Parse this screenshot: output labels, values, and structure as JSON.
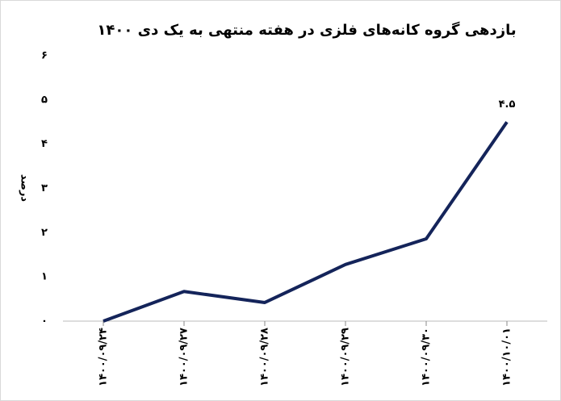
{
  "chart_data": {
    "type": "line",
    "title": "بازدهی گروه کانه‌های فلزی در هفته منتهی به یک دی ۱۴۰۰",
    "y_label": "درصد",
    "categories": [
      "۱۴۰۰/۰۹/۲۴",
      "۱۴۰۰/۰۹/۲۷",
      "۱۴۰۰/۰۹/۲۸",
      "۱۴۰۰/۰۹/۲۹",
      "۱۴۰۰/۰۹/۳۰",
      "۱۴۰۰/۱۰/۰۱"
    ],
    "values": [
      0,
      0.67,
      0.42,
      1.28,
      1.86,
      4.5
    ],
    "value_labels": [
      null,
      null,
      null,
      null,
      null,
      "۴.۵"
    ],
    "color": "#14245a",
    "ylim": [
      0,
      6
    ],
    "yticks": [
      {
        "value": 0,
        "label": "۰"
      },
      {
        "value": 1,
        "label": "۱"
      },
      {
        "value": 2,
        "label": "۲"
      },
      {
        "value": 3,
        "label": "۳"
      },
      {
        "value": 4,
        "label": "۴"
      },
      {
        "value": 5,
        "label": "۵"
      },
      {
        "value": 6,
        "label": "۶"
      }
    ],
    "grid": false
  }
}
